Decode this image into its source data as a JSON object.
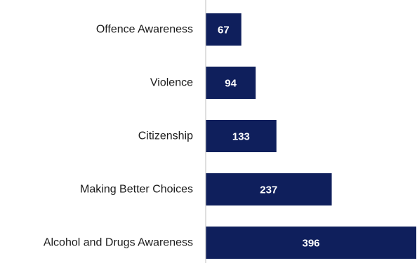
{
  "chart_data": {
    "type": "bar",
    "orientation": "horizontal",
    "categories": [
      "Offence Awareness",
      "Violence",
      "Citizenship",
      "Making Better Choices",
      "Alcohol and Drugs Awareness"
    ],
    "values": [
      67,
      94,
      133,
      237,
      396
    ],
    "data_labels": [
      "67",
      "94",
      "133",
      "237",
      "396"
    ],
    "bar_color": "#0f1f5c",
    "value_label_color": "#ffffff",
    "axis_color": "#bfbfbf",
    "xlim": [
      0,
      396
    ],
    "grid": false,
    "legend": "none",
    "title": "",
    "xlabel": "",
    "ylabel": ""
  }
}
